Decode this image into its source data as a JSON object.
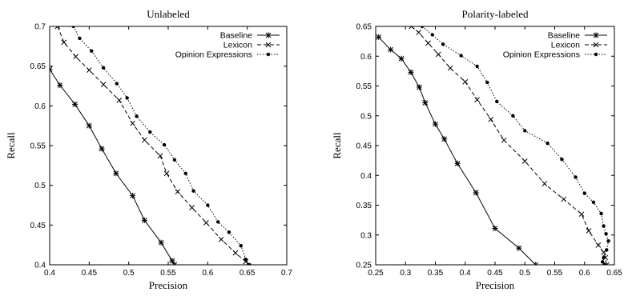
{
  "chart_data": [
    {
      "type": "line",
      "title": "Unlabeled",
      "xlabel": "Precision",
      "ylabel": "Recall",
      "xlim": [
        0.4,
        0.7
      ],
      "ylim": [
        0.4,
        0.7
      ],
      "xticks": [
        "0.4",
        "0.45",
        "0.5",
        "0.55",
        "0.6",
        "0.65",
        "0.7"
      ],
      "yticks": [
        "0.4",
        "0.45",
        "0.5",
        "0.55",
        "0.6",
        "0.65",
        "0.7"
      ],
      "legend_position": "top-right",
      "series": [
        {
          "name": "Baseline",
          "dash": "solid",
          "marker": "asterisk",
          "points": [
            [
              0.4,
              0.646
            ],
            [
              0.413,
              0.626
            ],
            [
              0.432,
              0.602
            ],
            [
              0.45,
              0.575
            ],
            [
              0.466,
              0.546
            ],
            [
              0.484,
              0.515
            ],
            [
              0.505,
              0.487
            ],
            [
              0.52,
              0.456
            ],
            [
              0.541,
              0.428
            ],
            [
              0.555,
              0.405
            ],
            [
              0.558,
              0.4
            ]
          ]
        },
        {
          "name": "Lexicon",
          "dash": "dashed",
          "marker": "x",
          "points": [
            [
              0.41,
              0.7
            ],
            [
              0.418,
              0.68
            ],
            [
              0.433,
              0.662
            ],
            [
              0.45,
              0.645
            ],
            [
              0.468,
              0.627
            ],
            [
              0.488,
              0.607
            ],
            [
              0.505,
              0.578
            ],
            [
              0.52,
              0.557
            ],
            [
              0.54,
              0.537
            ],
            [
              0.548,
              0.515
            ],
            [
              0.562,
              0.492
            ],
            [
              0.58,
              0.472
            ],
            [
              0.598,
              0.453
            ],
            [
              0.617,
              0.432
            ],
            [
              0.635,
              0.415
            ],
            [
              0.648,
              0.404
            ]
          ]
        },
        {
          "name": "Opinion Expressions",
          "dash": "dotted",
          "marker": "dot",
          "points": [
            [
              0.43,
              0.7
            ],
            [
              0.438,
              0.685
            ],
            [
              0.453,
              0.669
            ],
            [
              0.468,
              0.648
            ],
            [
              0.485,
              0.628
            ],
            [
              0.498,
              0.61
            ],
            [
              0.51,
              0.587
            ],
            [
              0.527,
              0.567
            ],
            [
              0.545,
              0.551
            ],
            [
              0.558,
              0.532
            ],
            [
              0.572,
              0.515
            ],
            [
              0.582,
              0.493
            ],
            [
              0.6,
              0.475
            ],
            [
              0.613,
              0.454
            ],
            [
              0.627,
              0.441
            ],
            [
              0.642,
              0.424
            ],
            [
              0.648,
              0.407
            ],
            [
              0.653,
              0.4
            ]
          ]
        }
      ]
    },
    {
      "type": "line",
      "title": "Polarity-labeled",
      "xlabel": "Precision",
      "ylabel": "Recall",
      "xlim": [
        0.25,
        0.65
      ],
      "ylim": [
        0.25,
        0.65
      ],
      "xticks": [
        "0.25",
        "0.3",
        "0.35",
        "0.4",
        "0.45",
        "0.5",
        "0.55",
        "0.6",
        "0.65"
      ],
      "yticks": [
        "0.25",
        "0.3",
        "0.35",
        "0.4",
        "0.45",
        "0.5",
        "0.55",
        "0.6",
        "0.65"
      ],
      "legend_position": "top-right",
      "series": [
        {
          "name": "Baseline",
          "dash": "solid",
          "marker": "asterisk",
          "points": [
            [
              0.255,
              0.632
            ],
            [
              0.275,
              0.611
            ],
            [
              0.293,
              0.596
            ],
            [
              0.309,
              0.573
            ],
            [
              0.323,
              0.548
            ],
            [
              0.333,
              0.522
            ],
            [
              0.35,
              0.486
            ],
            [
              0.365,
              0.461
            ],
            [
              0.387,
              0.42
            ],
            [
              0.418,
              0.371
            ],
            [
              0.45,
              0.311
            ],
            [
              0.49,
              0.278
            ],
            [
              0.518,
              0.25
            ]
          ]
        },
        {
          "name": "Lexicon",
          "dash": "dashed",
          "marker": "x",
          "points": [
            [
              0.31,
              0.65
            ],
            [
              0.322,
              0.64
            ],
            [
              0.338,
              0.622
            ],
            [
              0.355,
              0.603
            ],
            [
              0.375,
              0.58
            ],
            [
              0.4,
              0.557
            ],
            [
              0.42,
              0.527
            ],
            [
              0.443,
              0.494
            ],
            [
              0.465,
              0.459
            ],
            [
              0.5,
              0.424
            ],
            [
              0.533,
              0.386
            ],
            [
              0.565,
              0.36
            ],
            [
              0.595,
              0.335
            ],
            [
              0.607,
              0.307
            ],
            [
              0.623,
              0.283
            ],
            [
              0.632,
              0.271
            ],
            [
              0.635,
              0.262
            ],
            [
              0.637,
              0.25
            ]
          ]
        },
        {
          "name": "Opinion Expressions",
          "dash": "dotted",
          "marker": "dot",
          "points": [
            [
              0.328,
              0.65
            ],
            [
              0.345,
              0.636
            ],
            [
              0.363,
              0.62
            ],
            [
              0.393,
              0.601
            ],
            [
              0.42,
              0.583
            ],
            [
              0.437,
              0.556
            ],
            [
              0.453,
              0.524
            ],
            [
              0.48,
              0.5
            ],
            [
              0.5,
              0.475
            ],
            [
              0.538,
              0.454
            ],
            [
              0.562,
              0.427
            ],
            [
              0.585,
              0.397
            ],
            [
              0.6,
              0.37
            ],
            [
              0.615,
              0.355
            ],
            [
              0.628,
              0.336
            ],
            [
              0.632,
              0.315
            ],
            [
              0.636,
              0.302
            ],
            [
              0.64,
              0.29
            ],
            [
              0.637,
              0.275
            ],
            [
              0.632,
              0.262
            ],
            [
              0.63,
              0.255
            ],
            [
              0.633,
              0.25
            ]
          ]
        }
      ]
    }
  ]
}
